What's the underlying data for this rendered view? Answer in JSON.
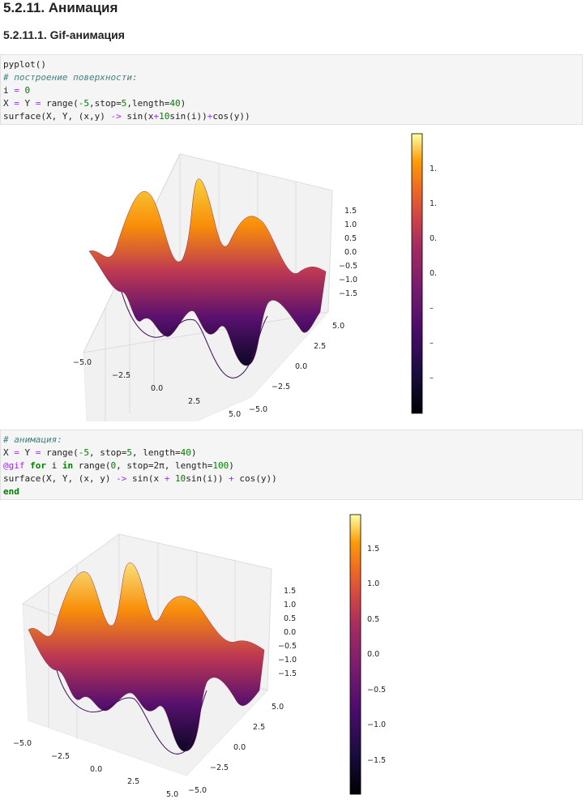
{
  "headings": {
    "section": "5.2.11. Анимация",
    "subsection": "5.2.11.1. Gif-анимация"
  },
  "code1": {
    "l1": "pyplot()",
    "l2": "# построение поверхности:",
    "l3a": "i ",
    "l3b": "=",
    "l3c": " 0",
    "l4a": "X ",
    "l4b": "=",
    "l4c": " Y ",
    "l4d": "=",
    "l4e": " range(",
    "l4f": "-5",
    "l4g": ",stop=",
    "l4h": "5",
    "l4i": ",length=",
    "l4j": "40",
    "l4k": ")",
    "l5a": "surface(X, Y, (x,y) ",
    "l5b": "->",
    "l5c": " sin(x",
    "l5d": "+",
    "l5e": "10",
    "l5f": "sin(i))",
    "l5g": "+",
    "l5h": "cos(y))"
  },
  "code2": {
    "l1": "# анимация:",
    "l2a": "X ",
    "l2b": "=",
    "l2c": " Y ",
    "l2d": "=",
    "l2e": " range(",
    "l2f": "-5",
    "l2g": ", stop=",
    "l2h": "5",
    "l2i": ", length=",
    "l2j": "40",
    "l2k": ")",
    "l3a": "@gif",
    "l3b": " ",
    "l3c": "for",
    "l3d": " i ",
    "l3e": "in",
    "l3f": " range(",
    "l3g": "0",
    "l3h": ", stop=",
    "l3i": "2π",
    "l3j": ", length=",
    "l3k": "100",
    "l3l": ")",
    "l4a": "surface(X, Y, (x, y) ",
    "l4b": "->",
    "l4c": " sin(x ",
    "l4d": "+",
    "l4e": " ",
    "l4f": "10",
    "l4g": "sin(i)) ",
    "l4h": "+",
    "l4i": " cos(y))",
    "l5": "end"
  },
  "plot1": {
    "z_ticks": [
      "1.5",
      "1.0",
      "0.5",
      "0.0",
      "−0.5",
      "−1.0",
      "−1.5"
    ],
    "y_ticks": [
      "5.0",
      "2.5",
      "0.0",
      "−2.5",
      "−5.0"
    ],
    "x_ticks": [
      "−5.0",
      "−2.5",
      "0.0",
      "2.5",
      "5.0"
    ],
    "colorbar_ticks": [
      "1.",
      "1.",
      "0.",
      "0.",
      "–",
      "–",
      "–"
    ]
  },
  "plot2": {
    "z_ticks": [
      "1.5",
      "1.0",
      "0.5",
      "0.0",
      "−0.5",
      "−1.0",
      "−1.5"
    ],
    "y_ticks": [
      "5.0",
      "2.5",
      "0.0",
      "−2.5",
      "−5.0"
    ],
    "x_ticks": [
      "−5.0",
      "−2.5",
      "0.0",
      "2.5",
      "5.0"
    ],
    "colorbar_ticks": [
      "1.5",
      "1.0",
      "0.5",
      "0.0",
      "−0.5",
      "−1.0",
      "−1.5"
    ]
  },
  "colors": {
    "code_bg": "#f5f5f5",
    "comment": "#408080",
    "number": "#008000",
    "operator": "#aa22ff",
    "keyword": "#008000"
  }
}
